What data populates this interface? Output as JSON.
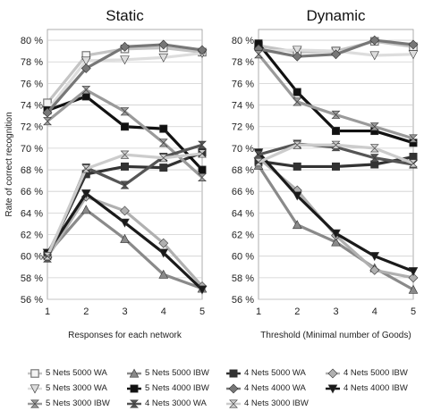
{
  "chart_data": [
    {
      "type": "line",
      "title": "Static",
      "xlabel": "Responses for each network",
      "ylabel": "Rate of correct recognition",
      "categories": [
        1,
        2,
        3,
        4,
        5
      ],
      "xlim": [
        1,
        5
      ],
      "ylim": [
        56,
        81
      ],
      "yticks": [
        "56 %",
        "58 %",
        "60 %",
        "62 %",
        "64 %",
        "66 %",
        "68 %",
        "70 %",
        "72 %",
        "74 %",
        "76 %",
        "78 %",
        "80 %"
      ],
      "xticks": [
        "1",
        "2",
        "3",
        "4",
        "5"
      ],
      "grid": "horizontal",
      "series": [
        {
          "name": "5 Nets 5000 WA",
          "color": "#c4c4c4",
          "marker": "square-open",
          "values": [
            74.2,
            78.6,
            79.2,
            79.3,
            78.9
          ]
        },
        {
          "name": "5 Nets 5000 IBW",
          "color": "#8a8a8a",
          "marker": "triangle",
          "values": [
            60.2,
            64.3,
            61.6,
            58.3,
            57.0
          ]
        },
        {
          "name": "4 Nets 5000 WA",
          "color": "#333333",
          "marker": "square",
          "values": [
            60.1,
            67.6,
            68.3,
            68.2,
            69.6
          ]
        },
        {
          "name": "4 Nets 5000 IBW",
          "color": "#b0b0b0",
          "marker": "diamond",
          "values": [
            59.9,
            65.5,
            64.2,
            61.2,
            57.2
          ]
        },
        {
          "name": "5 Nets 3000 WA",
          "color": "#dddddd",
          "marker": "triangle-down",
          "values": [
            73.5,
            78.1,
            78.2,
            78.4,
            78.8
          ]
        },
        {
          "name": "5 Nets 4000 IBW",
          "color": "#111111",
          "marker": "square",
          "values": [
            73.5,
            74.8,
            72.0,
            71.8,
            68.0
          ]
        },
        {
          "name": "4 Nets 4000 WA",
          "color": "#777777",
          "marker": "diamond",
          "values": [
            73.3,
            77.4,
            79.4,
            79.6,
            79.1
          ]
        },
        {
          "name": "4 Nets 4000 IBW",
          "color": "#1a1a1a",
          "marker": "triangle-down",
          "values": [
            60.3,
            65.8,
            63.1,
            60.3,
            56.9
          ]
        },
        {
          "name": "5 Nets 3000 IBW",
          "color": "#9a9a9a",
          "marker": "bowtie",
          "values": [
            72.5,
            75.4,
            73.4,
            70.5,
            67.3
          ]
        },
        {
          "name": "4 Nets 3000 WA",
          "color": "#555555",
          "marker": "bowtie",
          "values": [
            59.8,
            68.2,
            66.6,
            69.2,
            70.3
          ]
        },
        {
          "name": "4 Nets 3000 IBW",
          "color": "#cccccc",
          "marker": "bowtie",
          "values": [
            60.0,
            68.1,
            69.4,
            69.1,
            69.5
          ]
        }
      ]
    },
    {
      "type": "line",
      "title": "Dynamic",
      "xlabel": "Threshold (Minimal number of Goods)",
      "ylabel": "",
      "categories": [
        1,
        2,
        3,
        4,
        5
      ],
      "xlim": [
        1,
        5
      ],
      "ylim": [
        56,
        81
      ],
      "yticks": [
        "56 %",
        "58 %",
        "60 %",
        "62 %",
        "64 %",
        "66 %",
        "68 %",
        "70 %",
        "72 %",
        "74 %",
        "76 %",
        "78 %",
        "80 %"
      ],
      "xticks": [
        "1",
        "2",
        "3",
        "4",
        "5"
      ],
      "grid": "horizontal",
      "series": [
        {
          "name": "5 Nets 5000 WA",
          "color": "#c4c4c4",
          "marker": "square-open",
          "values": [
            79.5,
            78.9,
            79.0,
            79.9,
            79.4
          ]
        },
        {
          "name": "5 Nets 5000 IBW",
          "color": "#8a8a8a",
          "marker": "triangle",
          "values": [
            68.4,
            62.9,
            61.3,
            58.9,
            56.9
          ]
        },
        {
          "name": "4 Nets 5000 WA",
          "color": "#333333",
          "marker": "square",
          "values": [
            68.8,
            68.3,
            68.3,
            68.5,
            69.2
          ]
        },
        {
          "name": "4 Nets 5000 IBW",
          "color": "#b0b0b0",
          "marker": "diamond",
          "values": [
            69.1,
            66.1,
            61.9,
            58.7,
            58.0
          ]
        },
        {
          "name": "5 Nets 3000 WA",
          "color": "#dddddd",
          "marker": "triangle-down",
          "values": [
            79.0,
            79.1,
            79.0,
            78.6,
            78.7
          ]
        },
        {
          "name": "5 Nets 4000 IBW",
          "color": "#111111",
          "marker": "square",
          "values": [
            79.7,
            75.2,
            71.6,
            71.6,
            70.5
          ]
        },
        {
          "name": "4 Nets 4000 WA",
          "color": "#777777",
          "marker": "diamond",
          "values": [
            79.2,
            78.5,
            78.7,
            80.0,
            79.6
          ]
        },
        {
          "name": "4 Nets 4000 IBW",
          "color": "#1a1a1a",
          "marker": "triangle-down",
          "values": [
            69.6,
            65.6,
            62.1,
            60.0,
            58.6
          ]
        },
        {
          "name": "5 Nets 3000 IBW",
          "color": "#9a9a9a",
          "marker": "bowtie",
          "values": [
            78.7,
            74.3,
            73.1,
            72.0,
            70.9
          ]
        },
        {
          "name": "4 Nets 3000 WA",
          "color": "#555555",
          "marker": "bowtie",
          "values": [
            69.4,
            70.4,
            70.1,
            69.1,
            68.5
          ]
        },
        {
          "name": "4 Nets 3000 IBW",
          "color": "#cccccc",
          "marker": "bowtie",
          "values": [
            68.7,
            70.3,
            70.3,
            70.0,
            68.6
          ]
        }
      ]
    }
  ],
  "legend": {
    "rows": [
      [
        "5 Nets 5000 WA",
        "5 Nets 5000 IBW",
        "4 Nets 5000 WA",
        "4 Nets 5000 IBW"
      ],
      [
        "5 Nets 3000 WA",
        "5 Nets 4000 IBW",
        "4 Nets 4000 WA",
        "4 Nets 4000 IBW"
      ],
      [
        "5 Nets 3000 IBW",
        "4 Nets 3000 WA",
        "4 Nets 3000 IBW"
      ]
    ]
  }
}
